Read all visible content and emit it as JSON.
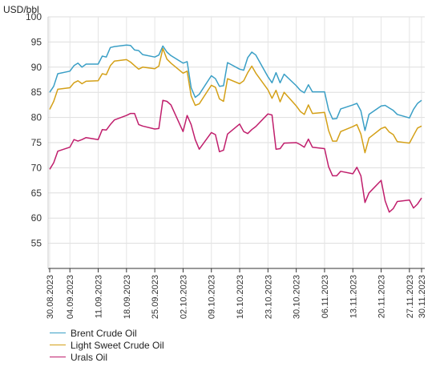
{
  "chart_data": {
    "type": "line",
    "unit_label": "USD/bbl",
    "ylim": [
      50,
      100
    ],
    "yticks": [
      55,
      60,
      65,
      70,
      75,
      80,
      85,
      90,
      95,
      100
    ],
    "grid": true,
    "legend_position": "bottom-left",
    "x_tick_labels": [
      "30.08.2023",
      "04.09.2023",
      "11.09.2023",
      "18.09.2023",
      "25.09.2023",
      "02.10.2023",
      "09.10.2023",
      "16.10.2023",
      "23.10.2023",
      "30.10.2023",
      "06.11.2023",
      "13.11.2023",
      "20.11.2023",
      "27.11.2023",
      "30.11.2023"
    ],
    "x": [
      "30.08.2023",
      "31.08.2023",
      "01.09.2023",
      "04.09.2023",
      "05.09.2023",
      "06.09.2023",
      "07.09.2023",
      "08.09.2023",
      "11.09.2023",
      "12.09.2023",
      "13.09.2023",
      "14.09.2023",
      "15.09.2023",
      "18.09.2023",
      "19.09.2023",
      "20.09.2023",
      "21.09.2023",
      "22.09.2023",
      "25.09.2023",
      "26.09.2023",
      "27.09.2023",
      "28.09.2023",
      "29.09.2023",
      "02.10.2023",
      "03.10.2023",
      "04.10.2023",
      "05.10.2023",
      "06.10.2023",
      "09.10.2023",
      "10.10.2023",
      "11.10.2023",
      "12.10.2023",
      "13.10.2023",
      "16.10.2023",
      "17.10.2023",
      "18.10.2023",
      "19.10.2023",
      "20.10.2023",
      "23.10.2023",
      "24.10.2023",
      "25.10.2023",
      "26.10.2023",
      "27.10.2023",
      "30.10.2023",
      "31.10.2023",
      "01.11.2023",
      "02.11.2023",
      "03.11.2023",
      "06.11.2023",
      "07.11.2023",
      "08.11.2023",
      "09.11.2023",
      "10.11.2023",
      "13.11.2023",
      "14.11.2023",
      "15.11.2023",
      "16.11.2023",
      "17.11.2023",
      "20.11.2023",
      "21.11.2023",
      "22.11.2023",
      "23.11.2023",
      "24.11.2023",
      "27.11.2023",
      "28.11.2023",
      "29.11.2023",
      "30.11.2023"
    ],
    "series": [
      {
        "name": "Brent Crude Oil",
        "color": "#3a9fc6",
        "values": [
          85.0,
          86.2,
          88.7,
          89.2,
          90.3,
          90.8,
          90.0,
          90.6,
          90.6,
          92.2,
          92.0,
          93.9,
          94.1,
          94.4,
          94.3,
          93.4,
          93.3,
          92.5,
          92.0,
          92.4,
          94.2,
          93.0,
          92.3,
          90.8,
          91.1,
          85.9,
          84.0,
          84.6,
          88.3,
          87.7,
          86.2,
          86.3,
          90.9,
          89.6,
          89.4,
          91.9,
          93.0,
          92.4,
          88.1,
          86.9,
          88.9,
          86.9,
          88.6,
          86.3,
          85.4,
          84.9,
          86.5,
          85.1,
          85.1,
          81.5,
          79.7,
          79.8,
          81.7,
          82.5,
          82.8,
          81.3,
          77.4,
          80.6,
          82.3,
          82.4,
          81.9,
          81.4,
          80.6,
          79.9,
          81.6,
          82.8,
          83.4
        ]
      },
      {
        "name": "Light Sweet Crude Oil",
        "color": "#d4a017",
        "values": [
          81.6,
          83.2,
          85.6,
          85.9,
          86.9,
          87.3,
          86.7,
          87.2,
          87.3,
          88.7,
          88.5,
          90.3,
          91.2,
          91.5,
          91.0,
          90.3,
          89.6,
          90.0,
          89.7,
          90.2,
          93.7,
          91.6,
          90.8,
          88.8,
          89.2,
          84.3,
          82.4,
          82.7,
          86.4,
          86.0,
          83.7,
          83.2,
          87.7,
          86.7,
          87.3,
          88.9,
          90.2,
          88.8,
          85.5,
          83.8,
          85.4,
          83.1,
          85.0,
          82.3,
          81.2,
          80.6,
          82.5,
          80.8,
          81.0,
          77.4,
          75.3,
          75.3,
          77.2,
          78.2,
          78.6,
          76.7,
          73.0,
          75.9,
          77.8,
          78.1,
          77.1,
          76.6,
          75.2,
          74.9,
          76.4,
          77.9,
          78.3
        ]
      },
      {
        "name": "Urals Oil",
        "color": "#c01e6c",
        "values": [
          69.7,
          71.0,
          73.3,
          74.1,
          75.6,
          75.3,
          75.6,
          76.0,
          75.6,
          77.6,
          77.5,
          78.6,
          79.5,
          80.4,
          80.8,
          80.8,
          78.6,
          78.3,
          77.7,
          77.8,
          83.4,
          83.2,
          82.5,
          77.2,
          80.4,
          78.6,
          75.6,
          73.7,
          77.0,
          76.6,
          73.2,
          73.5,
          76.7,
          78.7,
          77.2,
          76.8,
          77.6,
          78.2,
          80.7,
          80.5,
          73.7,
          73.8,
          74.9,
          75.0,
          74.6,
          74.1,
          75.7,
          74.1,
          73.8,
          70.2,
          68.4,
          68.4,
          69.3,
          68.8,
          70.1,
          68.4,
          63.1,
          65.0,
          67.5,
          63.4,
          61.2,
          61.9,
          63.3,
          63.6,
          62.0,
          62.8,
          64.0
        ]
      }
    ]
  }
}
